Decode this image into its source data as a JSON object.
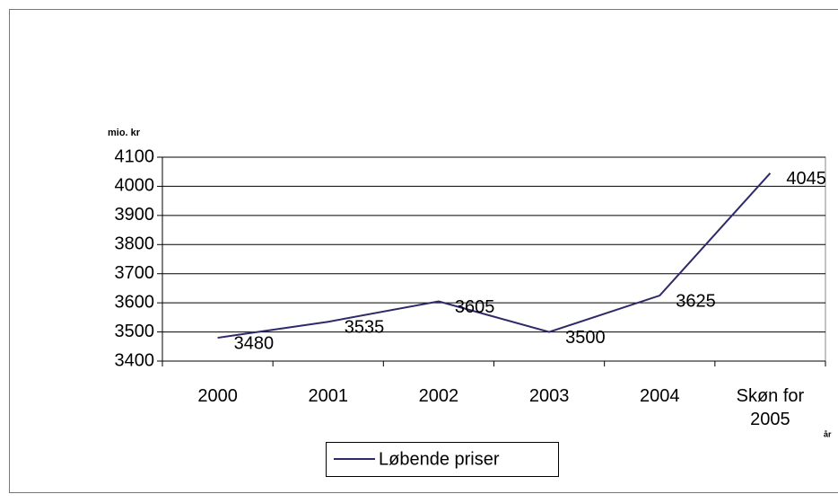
{
  "chart_data": {
    "type": "line",
    "y_label": "mio. kr",
    "x_label": "år",
    "categories": [
      "2000",
      "2001",
      "2002",
      "2003",
      "2004",
      "Skøn for 2005"
    ],
    "series": [
      {
        "name": "Løbende priser",
        "color": "#2e2a6a",
        "values": [
          3480,
          3535,
          3605,
          3500,
          3625,
          4045
        ]
      }
    ],
    "ylim": [
      3400,
      4100
    ],
    "yticks": [
      3400,
      3500,
      3600,
      3700,
      3800,
      3900,
      4000,
      4100
    ],
    "grid": true,
    "legend": "bottom"
  }
}
